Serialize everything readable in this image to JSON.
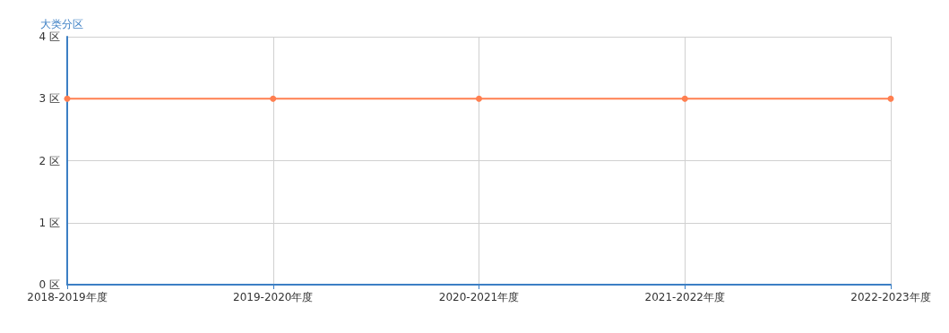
{
  "chart_data": {
    "type": "line",
    "ylabel": "大类分区",
    "categories": [
      "2018-2019年度",
      "2019-2020年度",
      "2020-2021年度",
      "2021-2022年度",
      "2022-2023年度"
    ],
    "series": [
      {
        "color": "#ff7f50",
        "values": [
          3,
          3,
          3,
          3,
          3
        ]
      }
    ],
    "ylim": [
      0,
      4
    ],
    "yticks": [
      {
        "value": 0,
        "label": "0 区"
      },
      {
        "value": 1,
        "label": "1 区"
      },
      {
        "value": 2,
        "label": "2 区"
      },
      {
        "value": 3,
        "label": "3 区"
      },
      {
        "value": 4,
        "label": "4 区"
      }
    ],
    "grid": true,
    "marker": "circle",
    "line_style": "solid"
  }
}
